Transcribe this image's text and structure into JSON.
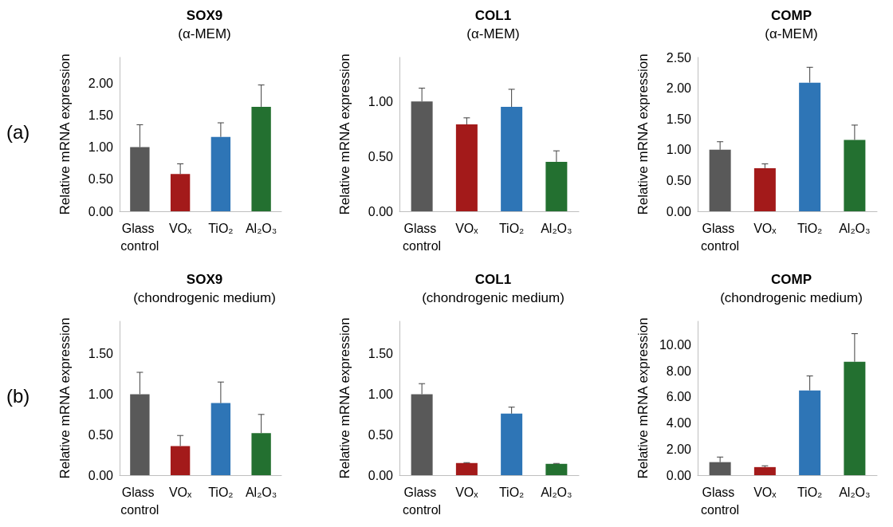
{
  "chart_data": [
    {
      "type": "bar",
      "title": "SOX9",
      "subtitle": "(α-MEM)",
      "ylabel": "Relative mRNA expression",
      "annotations": [
        "(a)"
      ],
      "categories": [
        "Glass control",
        "VOₓ",
        "TiO₂",
        "Al₂O₃"
      ],
      "values": [
        1.0,
        0.58,
        1.16,
        1.63
      ],
      "colors": [
        "#595959",
        "#a31a1a",
        "#2e75b6",
        "#237030"
      ],
      "errors": [
        [
          1.0,
          1.35
        ],
        [
          0.58,
          0.74
        ],
        [
          1.16,
          1.38
        ],
        [
          1.63,
          1.97
        ]
      ],
      "ylim": [
        0,
        2.4
      ],
      "yticks": [
        {
          "value": 0,
          "label": "0.00"
        },
        {
          "value": 0.5,
          "label": "0.50"
        },
        {
          "value": 1,
          "label": "1.00"
        },
        {
          "value": 1.5,
          "label": "1.50"
        },
        {
          "value": 2,
          "label": "2.00"
        }
      ],
      "grid": false
    },
    {
      "type": "bar",
      "title": "COL1",
      "subtitle": "(α-MEM)",
      "ylabel": "Relative mRNA expression",
      "categories": [
        "Glass control",
        "VOₓ",
        "TiO₂",
        "Al₂O₃"
      ],
      "values": [
        1.0,
        0.79,
        0.95,
        0.45
      ],
      "colors": [
        "#595959",
        "#a31a1a",
        "#2e75b6",
        "#237030"
      ],
      "errors": [
        [
          1.0,
          1.12
        ],
        [
          0.79,
          0.85
        ],
        [
          0.95,
          1.11
        ],
        [
          0.45,
          0.55
        ]
      ],
      "ylim": [
        0,
        1.4
      ],
      "yticks": [
        {
          "value": 0,
          "label": "0.00"
        },
        {
          "value": 0.5,
          "label": "0.50"
        },
        {
          "value": 1,
          "label": "1.00"
        }
      ],
      "grid": false
    },
    {
      "type": "bar",
      "title": "COMP",
      "subtitle": "(α-MEM)",
      "ylabel": "Relative mRNA expression",
      "categories": [
        "Glass control",
        "VOₓ",
        "TiO₂",
        "Al₂O₃"
      ],
      "values": [
        1.0,
        0.7,
        2.09,
        1.16
      ],
      "colors": [
        "#595959",
        "#a31a1a",
        "#2e75b6",
        "#237030"
      ],
      "errors": [
        [
          1.0,
          1.13
        ],
        [
          0.7,
          0.77
        ],
        [
          2.09,
          2.34
        ],
        [
          1.16,
          1.4
        ]
      ],
      "ylim": [
        0,
        2.5
      ],
      "yticks": [
        {
          "value": 0,
          "label": "0.00"
        },
        {
          "value": 0.5,
          "label": "0.50"
        },
        {
          "value": 1,
          "label": "1.00"
        },
        {
          "value": 1.5,
          "label": "1.50"
        },
        {
          "value": 2,
          "label": "2.00"
        },
        {
          "value": 2.5,
          "label": "2.50"
        }
      ],
      "grid": false
    },
    {
      "type": "bar",
      "title": "SOX9",
      "subtitle": "(chondrogenic medium)",
      "ylabel": "Relative mRNA expression",
      "annotations": [
        "(b)"
      ],
      "categories": [
        "Glass control",
        "VOₓ",
        "TiO₂",
        "Al₂O₃"
      ],
      "values": [
        1.0,
        0.36,
        0.89,
        0.52
      ],
      "colors": [
        "#595959",
        "#a31a1a",
        "#2e75b6",
        "#237030"
      ],
      "errors": [
        [
          1.0,
          1.27
        ],
        [
          0.36,
          0.49
        ],
        [
          0.89,
          1.15
        ],
        [
          0.52,
          0.75
        ]
      ],
      "ylim": [
        0,
        1.9
      ],
      "yticks": [
        {
          "value": 0,
          "label": "0.00"
        },
        {
          "value": 0.5,
          "label": "0.50"
        },
        {
          "value": 1,
          "label": "1.00"
        },
        {
          "value": 1.5,
          "label": "1.50"
        }
      ],
      "grid": false
    },
    {
      "type": "bar",
      "title": "COL1",
      "subtitle": "(chondrogenic medium)",
      "ylabel": "Relative mRNA expression",
      "categories": [
        "Glass control",
        "VOₓ",
        "TiO₂",
        "Al₂O₃"
      ],
      "values": [
        1.0,
        0.15,
        0.76,
        0.14
      ],
      "colors": [
        "#595959",
        "#a31a1a",
        "#2e75b6",
        "#237030"
      ],
      "errors": [
        [
          1.0,
          1.13
        ],
        [
          0.15,
          0.155
        ],
        [
          0.76,
          0.84
        ],
        [
          0.14,
          0.145
        ]
      ],
      "ylim": [
        0,
        1.9
      ],
      "yticks": [
        {
          "value": 0,
          "label": "0.00"
        },
        {
          "value": 0.5,
          "label": "0.50"
        },
        {
          "value": 1,
          "label": "1.00"
        },
        {
          "value": 1.5,
          "label": "1.50"
        }
      ],
      "grid": false
    },
    {
      "type": "bar",
      "title": "COMP",
      "subtitle": "(chondrogenic medium)",
      "ylabel": "Relative mRNA expression",
      "categories": [
        "Glass control",
        "VOₓ",
        "TiO₂",
        "Al₂O₃"
      ],
      "values": [
        1.0,
        0.62,
        6.5,
        8.7
      ],
      "colors": [
        "#595959",
        "#a31a1a",
        "#2e75b6",
        "#237030"
      ],
      "errors": [
        [
          1.0,
          1.39
        ],
        [
          0.62,
          0.72
        ],
        [
          6.5,
          7.61
        ],
        [
          8.7,
          10.85
        ]
      ],
      "ylim": [
        0,
        11.8
      ],
      "yticks": [
        {
          "value": 0,
          "label": "0.00"
        },
        {
          "value": 2,
          "label": "2.00"
        },
        {
          "value": 4,
          "label": "4.00"
        },
        {
          "value": 6,
          "label": "6.00"
        },
        {
          "value": 8,
          "label": "8.00"
        },
        {
          "value": 10,
          "label": "10.00"
        }
      ],
      "grid": false
    }
  ]
}
